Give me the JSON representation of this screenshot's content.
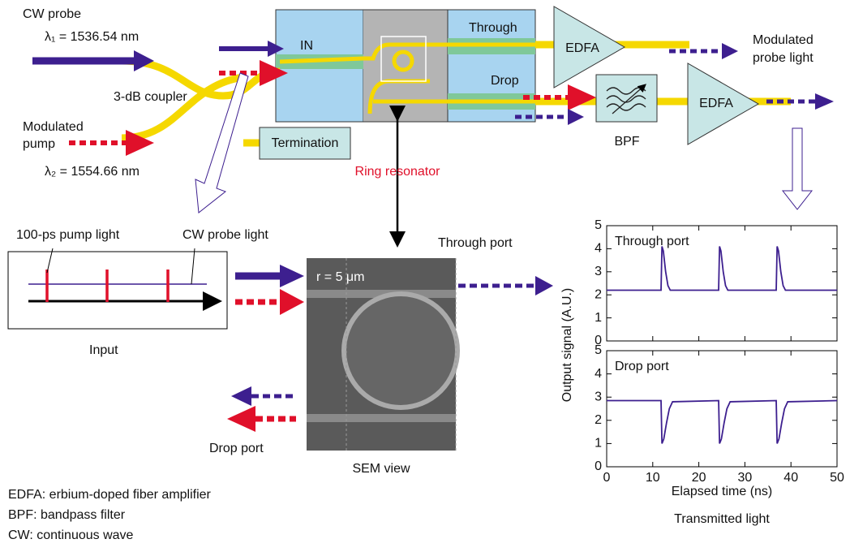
{
  "diagram": {
    "cw_probe": "CW probe",
    "lambda1": "λ₁ = 1536.54 nm",
    "coupler": "3-dB coupler",
    "pump_line1": "Modulated",
    "pump_line2": "pump",
    "lambda2": "λ₂ = 1554.66 nm",
    "in": "IN",
    "through": "Through",
    "drop": "Drop",
    "termination": "Termination",
    "edfa1": "EDFA",
    "edfa2": "EDFA",
    "bpf": "BPF",
    "out_line1": "Modulated",
    "out_line2": "probe light",
    "ring": "Ring resonator",
    "pump_light": "100-ps pump light",
    "probe_light": "CW probe light",
    "input": "Input",
    "through_port": "Through port",
    "radius": "r = 5 μm",
    "sem": "SEM view",
    "drop_port": "Drop port",
    "legend": [
      "EDFA: erbium-doped fiber amplifier",
      "BPF: bandpass filter",
      "CW: continuous wave"
    ],
    "y_label": "Output signal (A.U.)",
    "x_label": "Elapsed time (ns)",
    "caption": "Transmitted light"
  },
  "chart_data": [
    {
      "type": "line",
      "annotation": "Through port",
      "color": "#3d1f8f",
      "x": [
        0,
        11.8,
        12,
        12.3,
        12.8,
        13.3,
        13.8,
        24.3,
        24.5,
        24.8,
        25.3,
        25.8,
        26.3,
        36.8,
        37,
        37.3,
        37.8,
        38.3,
        38.8,
        50
      ],
      "values": [
        2.2,
        2.2,
        4.1,
        3.9,
        3.0,
        2.4,
        2.2,
        2.2,
        4.1,
        3.9,
        3.0,
        2.4,
        2.2,
        2.2,
        4.1,
        3.9,
        3.0,
        2.4,
        2.2,
        2.2
      ],
      "xlim": [
        0,
        50
      ],
      "ylim": [
        0,
        5
      ],
      "xticks": [
        0,
        10,
        20,
        30,
        40,
        50
      ],
      "yticks": [
        0,
        1,
        2,
        3,
        4,
        5
      ]
    },
    {
      "type": "line",
      "annotation": "Drop port",
      "color": "#3d1f8f",
      "x": [
        0,
        11.8,
        12,
        12.4,
        13,
        13.6,
        14.3,
        24.3,
        24.5,
        24.9,
        25.5,
        26.1,
        26.8,
        36.8,
        37,
        37.4,
        38,
        38.6,
        39.3,
        50
      ],
      "values": [
        2.85,
        2.85,
        1.0,
        1.2,
        1.9,
        2.5,
        2.8,
        2.85,
        1.0,
        1.2,
        1.9,
        2.5,
        2.8,
        2.85,
        1.0,
        1.2,
        1.9,
        2.5,
        2.8,
        2.85
      ],
      "xlim": [
        0,
        50
      ],
      "ylim": [
        0,
        5
      ],
      "xticks": [
        0,
        10,
        20,
        30,
        40,
        50
      ],
      "yticks": [
        0,
        1,
        2,
        3,
        4,
        5
      ]
    }
  ]
}
